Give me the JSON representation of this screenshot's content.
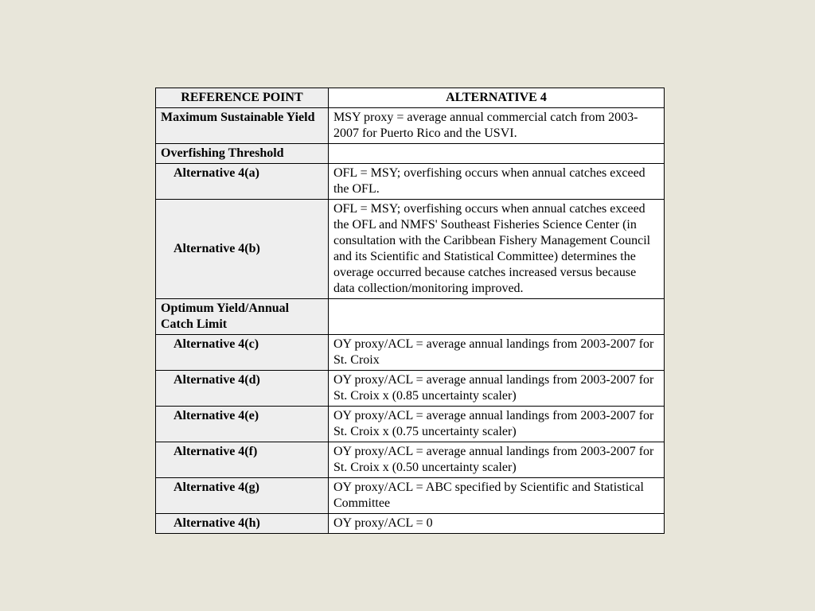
{
  "table": {
    "background_color": "#e8e6da",
    "border_color": "#000000",
    "col_left_bg": "#eeeeee",
    "col_right_bg": "#ffffff",
    "header": {
      "left": "REFERENCE POINT",
      "right": "ALTERNATIVE 4"
    },
    "rows": [
      {
        "label": "Maximum Sustainable Yield",
        "value": "MSY proxy = average annual commercial catch from 2003-2007 for Puerto Rico and the USVI.",
        "label_class": "bold-label"
      },
      {
        "label": "Overfishing Threshold",
        "value": "",
        "label_class": "bold-label"
      },
      {
        "label": "Alternative 4(a)",
        "value": "OFL = MSY; overfishing occurs when annual catches exceed the OFL.",
        "label_class": "indented"
      },
      {
        "label": "Alternative 4(b)",
        "value": "OFL = MSY; overfishing occurs when annual catches exceed the OFL and NMFS' Southeast Fisheries Science Center (in consultation with the Caribbean Fishery Management Council and its Scientific and Statistical Committee) determines the overage occurred because catches increased versus because data collection/monitoring improved.",
        "label_class": "indented vmiddle"
      },
      {
        "label": "Optimum Yield/Annual Catch Limit",
        "value": "",
        "label_class": "bold-label"
      },
      {
        "label": "Alternative 4(c)",
        "value": "OY proxy/ACL = average annual landings from 2003-2007 for St. Croix",
        "label_class": "indented"
      },
      {
        "label": "Alternative 4(d)",
        "value": "OY proxy/ACL = average annual landings from 2003-2007 for St. Croix x (0.85 uncertainty scaler)",
        "label_class": "indented"
      },
      {
        "label": "Alternative 4(e)",
        "value": "OY proxy/ACL = average annual landings from 2003-2007 for St. Croix x (0.75 uncertainty scaler)",
        "label_class": "indented"
      },
      {
        "label": "Alternative 4(f)",
        "value": "OY proxy/ACL = average annual landings from 2003-2007 for St. Croix x (0.50 uncertainty scaler)",
        "label_class": "indented"
      },
      {
        "label": "Alternative 4(g)",
        "value": "OY proxy/ACL = ABC specified by Scientific and Statistical Committee",
        "label_class": "indented"
      },
      {
        "label": "Alternative 4(h)",
        "value": "OY proxy/ACL = 0",
        "label_class": "indented"
      }
    ]
  }
}
